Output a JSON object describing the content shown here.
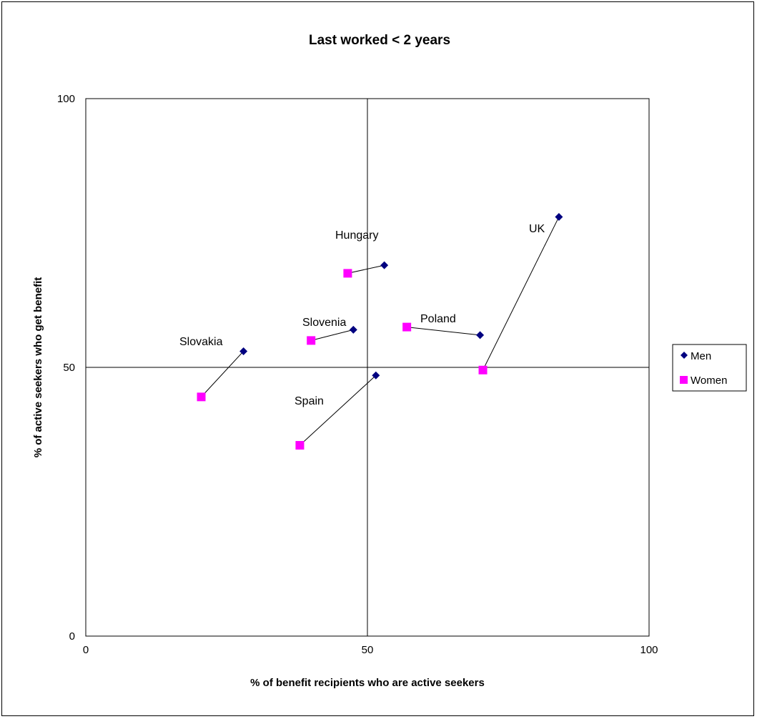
{
  "chart_data": {
    "type": "scatter",
    "title": "Last worked < 2 years",
    "xlabel": "% of benefit recipients who are active seekers",
    "ylabel": "% of active seekers who get benefit",
    "xlim": [
      0,
      100
    ],
    "ylim": [
      0,
      100
    ],
    "x_ticks": [
      "0",
      "50",
      "100"
    ],
    "y_ticks": [
      "0",
      "50",
      "100"
    ],
    "grid": false,
    "reference_lines": {
      "x": 50,
      "y": 50
    },
    "legend_position": "right",
    "series": [
      {
        "name": "Men",
        "marker": "diamond",
        "color": "#000080",
        "points": [
          {
            "country": "Slovakia",
            "x": 28,
            "y": 53
          },
          {
            "country": "Hungary",
            "x": 53,
            "y": 69
          },
          {
            "country": "Slovenia",
            "x": 47.5,
            "y": 57
          },
          {
            "country": "Poland",
            "x": 70,
            "y": 56
          },
          {
            "country": "UK",
            "x": 84,
            "y": 78
          },
          {
            "country": "Spain",
            "x": 51.5,
            "y": 48.5
          }
        ]
      },
      {
        "name": "Women",
        "marker": "square",
        "color": "#ff00ff",
        "points": [
          {
            "country": "Slovakia",
            "x": 20.5,
            "y": 44.5
          },
          {
            "country": "Hungary",
            "x": 46.5,
            "y": 67.5
          },
          {
            "country": "Slovenia",
            "x": 40,
            "y": 55
          },
          {
            "country": "Poland",
            "x": 57,
            "y": 57.5
          },
          {
            "country": "UK",
            "x": 70.5,
            "y": 49.5
          },
          {
            "country": "Spain",
            "x": 38,
            "y": 35.5
          }
        ]
      }
    ],
    "country_labels": [
      {
        "text": "Slovakia"
      },
      {
        "text": "Hungary"
      },
      {
        "text": "Slovenia"
      },
      {
        "text": "Poland"
      },
      {
        "text": "UK"
      },
      {
        "text": "Spain"
      }
    ]
  }
}
